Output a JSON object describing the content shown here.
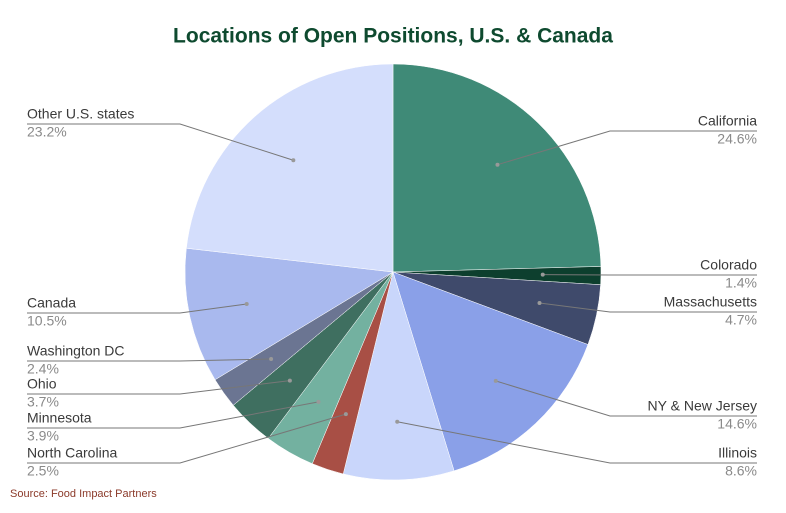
{
  "chart_data": {
    "type": "pie",
    "title": "Locations of Open Positions, U.S. & Canada",
    "source": "Source: Food Impact Partners",
    "categories": [
      "California",
      "Colorado",
      "Massachusetts",
      "NY & New Jersey",
      "Illinois",
      "North Carolina",
      "Minnesota",
      "Ohio",
      "Washington DC",
      "Canada",
      "Other U.S. states"
    ],
    "values": [
      24.6,
      1.4,
      4.7,
      14.6,
      8.6,
      2.5,
      3.9,
      3.7,
      2.4,
      10.5,
      23.2
    ],
    "value_labels": [
      "24.6%",
      "1.4%",
      "4.7%",
      "14.6%",
      "8.6%",
      "2.5%",
      "3.9%",
      "3.7%",
      "2.4%",
      "10.5%",
      "23.2%"
    ],
    "colors": [
      "#3f8a77",
      "#0d3f2e",
      "#3f4a6b",
      "#8aa0e8",
      "#c9d6fb",
      "#a84f45",
      "#73b1a0",
      "#3f6f60",
      "#6b7592",
      "#a9b9ee",
      "#d4defc"
    ]
  }
}
